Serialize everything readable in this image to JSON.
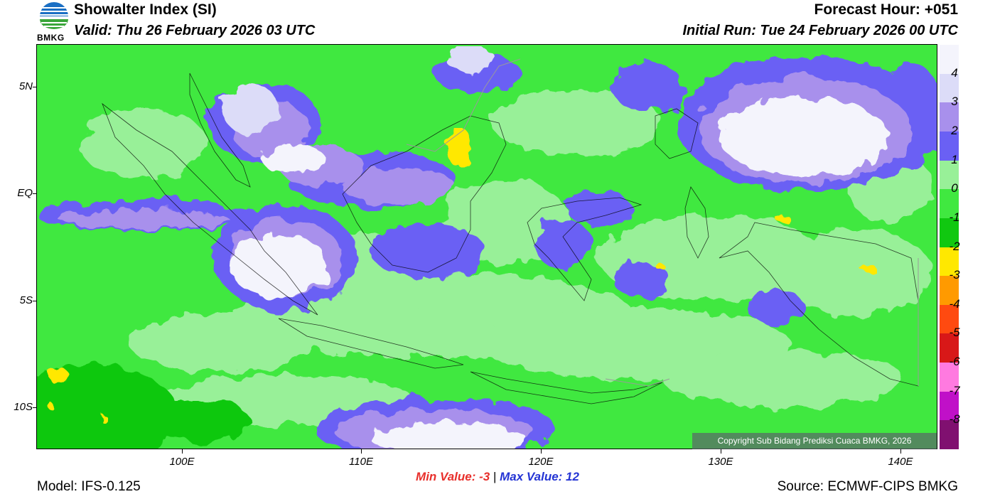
{
  "header": {
    "title": "Showalter Index (SI)",
    "valid": "Valid: Thu 26 February 2026 03 UTC",
    "forecast_hour": "Forecast Hour: +051",
    "initial_run": "Initial Run: Tue 24 February 2026 00 UTC",
    "logo_text": "BMKG"
  },
  "map": {
    "lat_labels": [
      "5N",
      "EQ",
      "5S",
      "10S"
    ],
    "lon_labels": [
      "100E",
      "110E",
      "120E",
      "130E",
      "140E"
    ],
    "copyright": "Copyright Sub Bidang Prediksi Cuaca BMKG, 2026"
  },
  "colorbar": {
    "labels": [
      "4",
      "3",
      "2",
      "1",
      "0",
      "-1",
      "-2",
      "-3",
      "-4",
      "-5",
      "-6",
      "-7",
      "-8"
    ],
    "colors": [
      "#f4f4fc",
      "#dcdcf8",
      "#a890ec",
      "#6a60f4",
      "#98f098",
      "#40e840",
      "#10c810",
      "#ffe800",
      "#ff9a00",
      "#ff4a10",
      "#d81818",
      "#ff7ae0",
      "#c010c8",
      "#801070"
    ]
  },
  "footer": {
    "min_label": "Min Value:  -3",
    "max_label": "Max Value:  12",
    "separator": "|",
    "model": "Model: IFS-0.125",
    "source": "Source: ECMWF-CIPS BMKG"
  }
}
